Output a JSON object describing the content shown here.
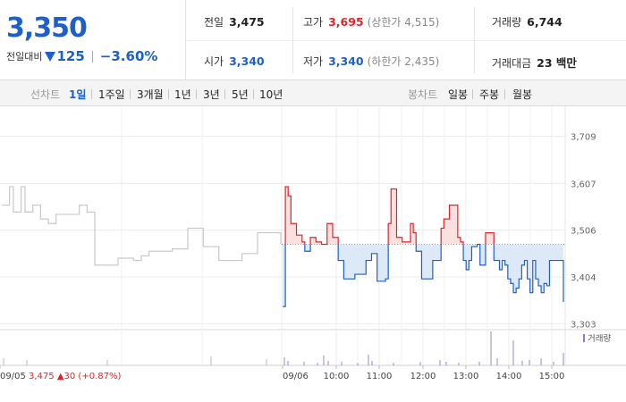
{
  "quote": {
    "price": "3,350",
    "change_label": "전일대비",
    "change": "125",
    "rate": "−3.60%"
  },
  "stats": {
    "prev_label": "전일",
    "prev": "3,475",
    "high_label": "고가",
    "high": "3,695",
    "upper_limit": "(상한가 4,515)",
    "volume_label": "거래량",
    "volume": "6,744",
    "open_label": "시가",
    "open": "3,340",
    "low_label": "저가",
    "low": "3,340",
    "lower_limit": "(하한가 2,435)",
    "amount_label": "거래대금",
    "amount": "23 백만"
  },
  "line_tabs": {
    "label": "선차트",
    "items": [
      "1일",
      "1주일",
      "3개월",
      "1년",
      "3년",
      "5년",
      "10년"
    ],
    "active": "1일"
  },
  "candle_tabs": {
    "label": "봉차트",
    "items": [
      "일봉",
      "주봉",
      "월봉"
    ]
  },
  "chart_data": {
    "type": "line",
    "y_ticks": [
      "3,709",
      "3,607",
      "3,506",
      "3,404",
      "3,303"
    ],
    "y_tick_values": [
      3709,
      3607,
      3506,
      3404,
      3303
    ],
    "ylim": [
      3290,
      3720
    ],
    "baseline": 3475,
    "x_ticks": [
      "09/05",
      "09/06",
      "10:00",
      "11:00",
      "12:00",
      "13:00",
      "14:00",
      "15:00"
    ],
    "prev_day_note": "09/05",
    "prev_day_close": "3,475",
    "prev_day_change": "30",
    "prev_day_rate": "(+0.87%)",
    "volume_legend": "거래량",
    "grid": true,
    "previous_day": [
      3560,
      3560,
      3600,
      3545,
      3545,
      3600,
      3545,
      3545,
      3560,
      3560,
      3530,
      3530,
      3520,
      3520,
      3540,
      3540,
      3540,
      3540,
      3540,
      3540,
      3560,
      3560,
      3545,
      3545,
      3430,
      3430,
      3430,
      3430,
      3430,
      3430,
      3445,
      3445,
      3445,
      3445,
      3440,
      3440,
      3450,
      3450,
      3460,
      3460,
      3460,
      3460,
      3460,
      3460,
      3465,
      3465,
      3465,
      3465,
      3510,
      3510,
      3510,
      3510,
      3470,
      3470,
      3470,
      3470,
      3440,
      3440,
      3440,
      3440,
      3440,
      3440,
      3455,
      3455,
      3455,
      3455,
      3500,
      3500,
      3500,
      3500,
      3500,
      3500,
      3475
    ],
    "today": [
      3340,
      3600,
      3580,
      3520,
      3520,
      3495,
      3495,
      3480,
      3460,
      3460,
      3490,
      3490,
      3480,
      3480,
      3475,
      3475,
      3520,
      3520,
      3490,
      3490,
      3440,
      3440,
      3400,
      3400,
      3400,
      3400,
      3410,
      3410,
      3410,
      3410,
      3440,
      3440,
      3455,
      3455,
      3395,
      3395,
      3395,
      3400,
      3520,
      3595,
      3595,
      3490,
      3490,
      3480,
      3480,
      3480,
      3520,
      3500,
      3460,
      3460,
      3400,
      3400,
      3400,
      3400,
      3440,
      3440,
      3440,
      3510,
      3530,
      3530,
      3560,
      3560,
      3560,
      3490,
      3480,
      3440,
      3420,
      3440,
      3470,
      3470,
      3475,
      3430,
      3430,
      3500,
      3500,
      3500,
      3440,
      3440,
      3420,
      3440,
      3430,
      3400,
      3390,
      3370,
      3380,
      3400,
      3430,
      3440,
      3400,
      3370,
      3440,
      3400,
      3385,
      3370,
      3390,
      3385,
      3440,
      3440,
      3440,
      3440,
      3440,
      3350
    ]
  }
}
